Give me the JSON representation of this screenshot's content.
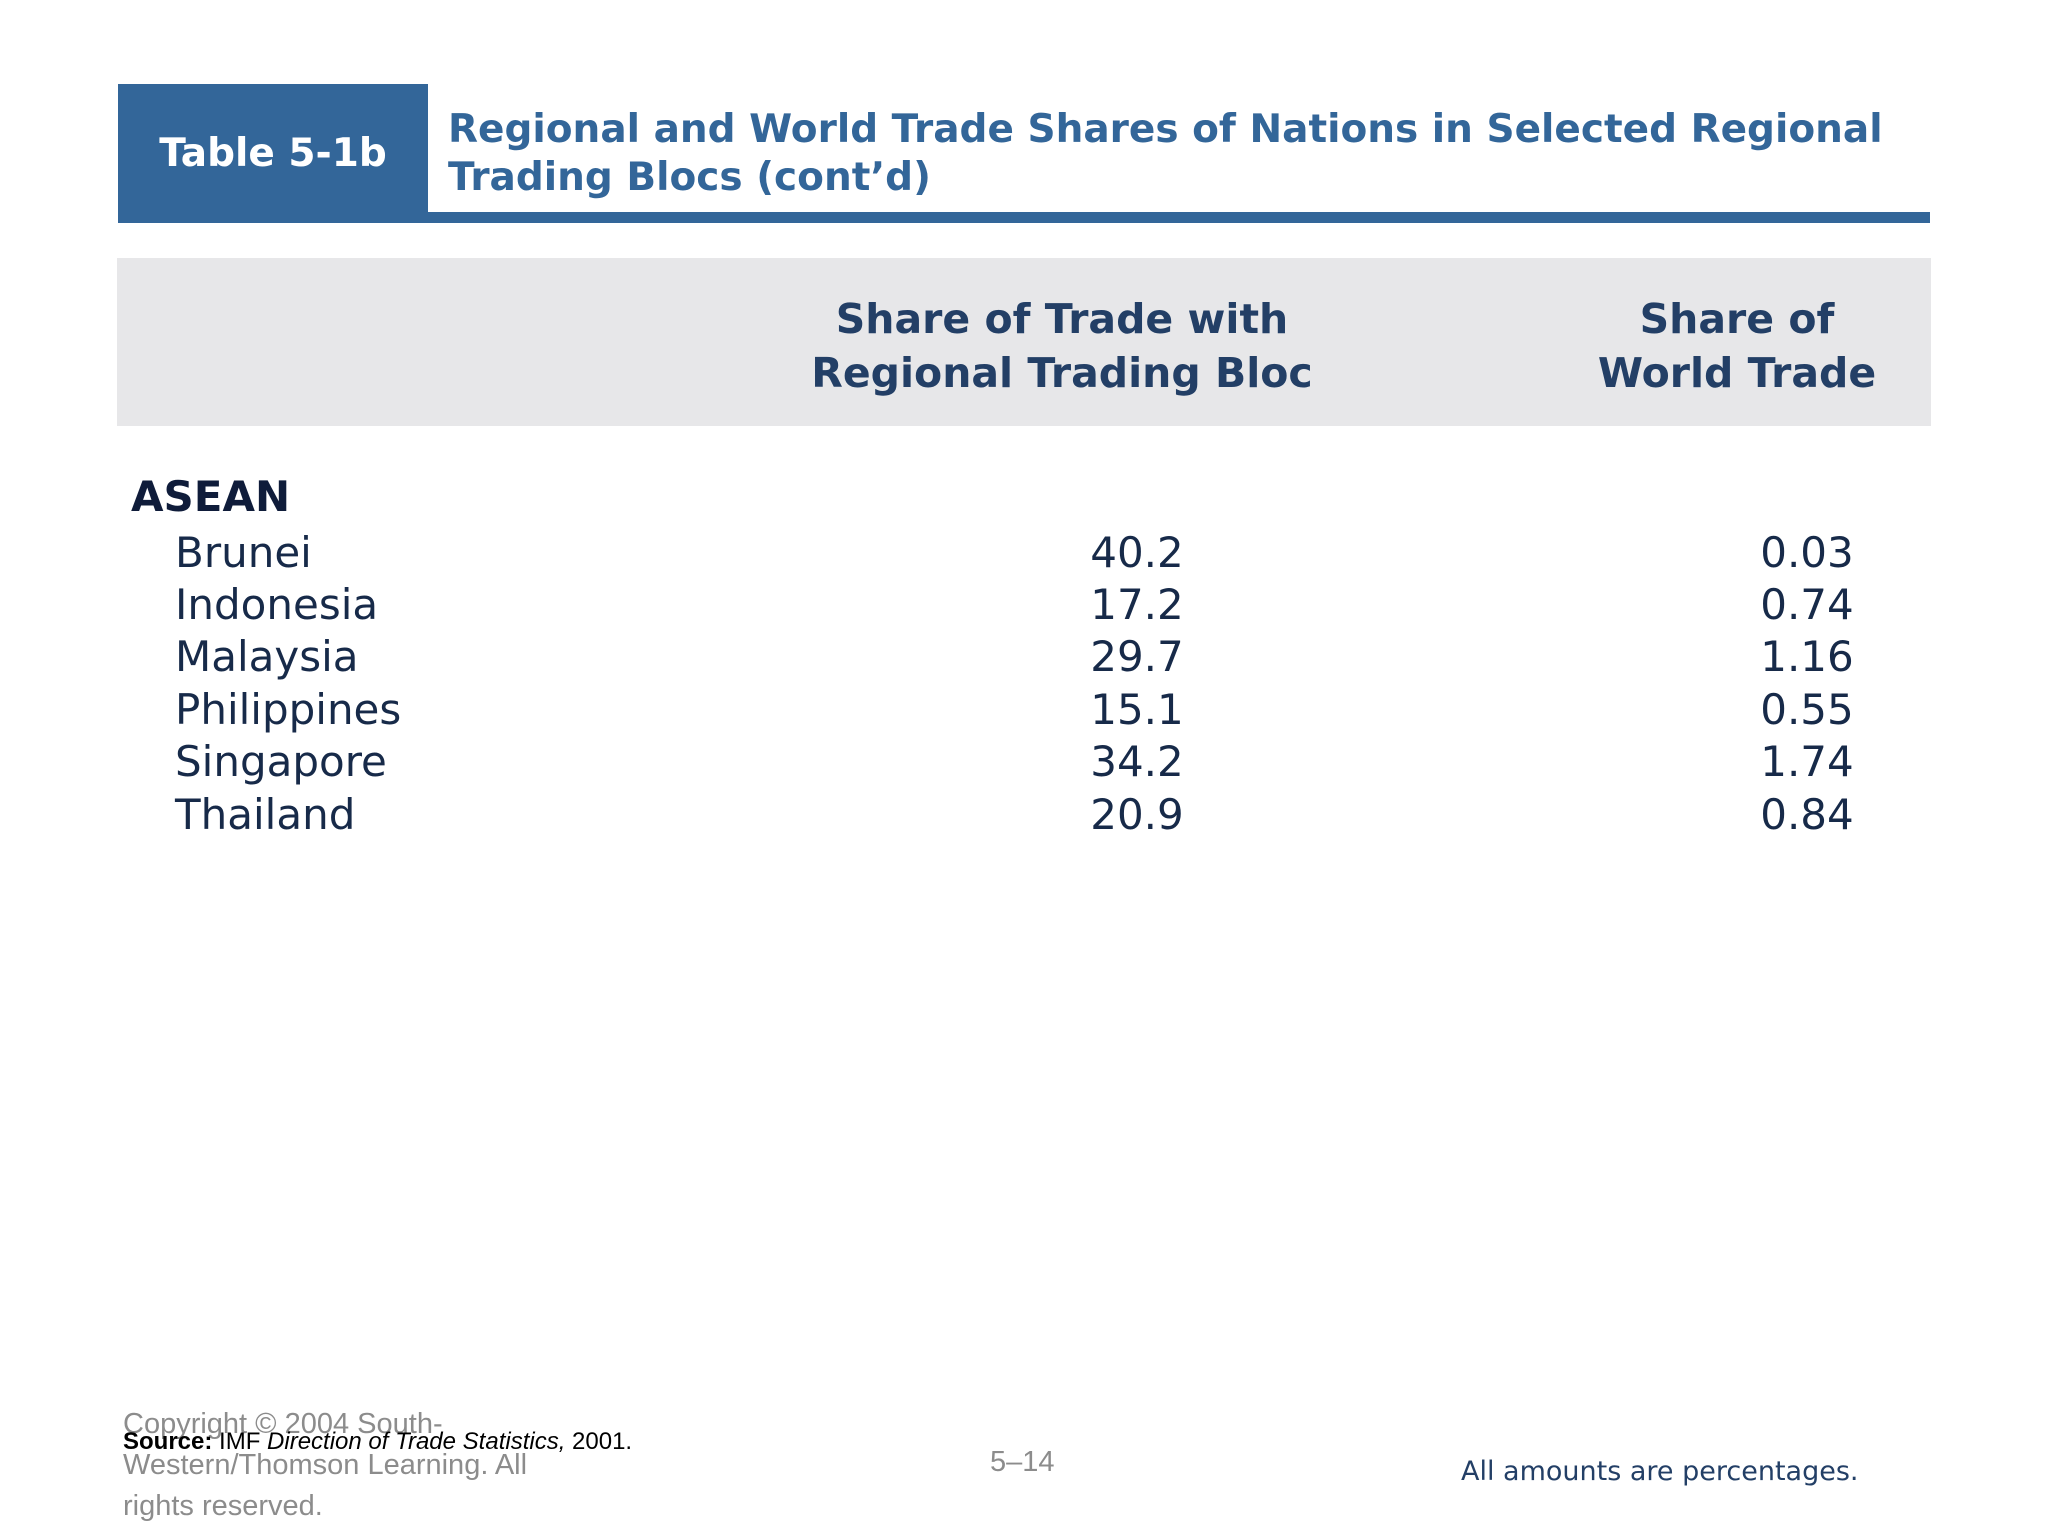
{
  "title": {
    "tag": "Table 5-1b",
    "text": "Regional and World Trade Shares of Nations in Selected Regional Trading Blocs (cont’d)"
  },
  "table": {
    "columns": [
      "Share of Trade with Regional Trading Bloc",
      "Share of World Trade"
    ],
    "group": "ASEAN",
    "rows": [
      {
        "country": "Brunei",
        "regional": "40.2",
        "world": "0.03"
      },
      {
        "country": "Indonesia",
        "regional": "17.2",
        "world": "0.74"
      },
      {
        "country": "Malaysia",
        "regional": "29.7",
        "world": "1.16"
      },
      {
        "country": "Philippines",
        "regional": "15.1",
        "world": "0.55"
      },
      {
        "country": "Singapore",
        "regional": "34.2",
        "world": "1.74"
      },
      {
        "country": "Thailand",
        "regional": "20.9",
        "world": "0.84"
      }
    ]
  },
  "source": {
    "label": "Source:",
    "publisher": "IMF",
    "publication": "Direction of Trade Statistics,",
    "year": "2001."
  },
  "footer": {
    "copyright": "Copyright © 2004 South-Western/Thomson Learning. All rights reserved.",
    "page_number": "5–14",
    "note": "All amounts are percentages."
  },
  "colors": {
    "brand_blue": "#336699",
    "header_band": "#e7e7e9",
    "table_text": "#172a49"
  }
}
